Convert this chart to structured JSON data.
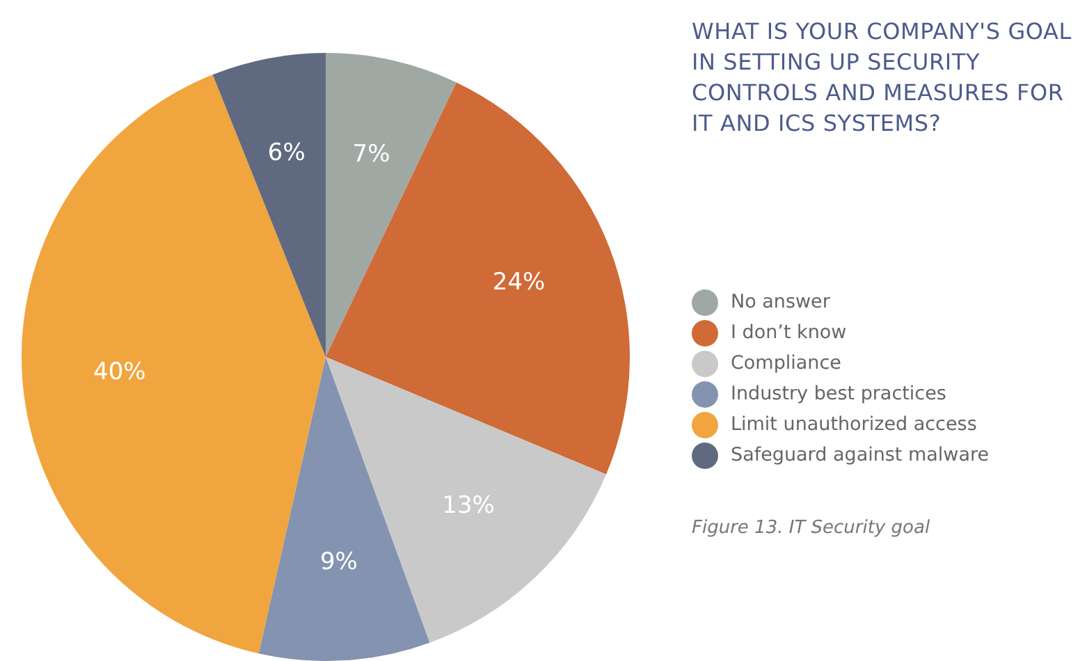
{
  "chart_data": {
    "type": "pie",
    "title": "WHAT IS YOUR COMPANY'S GOAL IN SETTING UP SECURITY CONTROLS AND MEASURES FOR IT AND ICS SYSTEMS?",
    "categories": [
      "No answer",
      "I don’t know",
      "Compliance",
      "Industry best practices",
      "Limit unauthorized access",
      "Safeguard against malware"
    ],
    "values": [
      7,
      24,
      13,
      9,
      40,
      6
    ],
    "colors": [
      "#9fa8a3",
      "#d06a36",
      "#c9c9c9",
      "#8393b0",
      "#f0a53e",
      "#5f6a80"
    ],
    "value_labels": [
      "7%",
      "24%",
      "13%",
      "9%",
      "40%",
      "6%"
    ],
    "legend": "right",
    "annotations": [
      "Figure 13. IT Security goal"
    ]
  }
}
